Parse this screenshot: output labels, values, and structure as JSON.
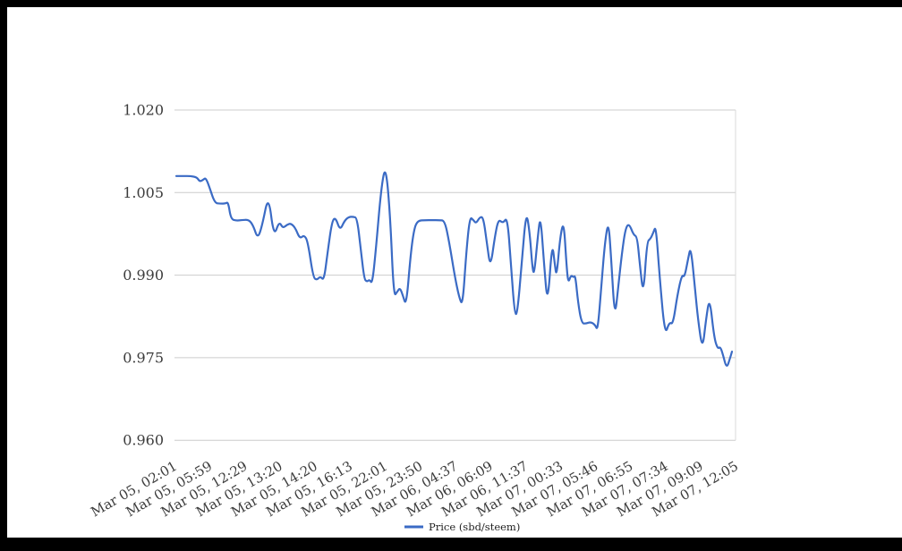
{
  "colors": {
    "frame": "#000000",
    "canvas": "#ffffff",
    "gridline": "#cccccc",
    "right_edge_line": "#d9d9d9",
    "axis_label_text": "#3c3c3c",
    "legend_text": "#1f1f1f",
    "series_line": "#3b6bc5"
  },
  "legend": {
    "label": "Price (sbd/steem)",
    "swatch": "line"
  },
  "chart_data": {
    "type": "line",
    "title": "",
    "xlabel": "",
    "ylabel": "",
    "ylim": [
      0.96,
      1.02
    ],
    "grid": "horizontal",
    "legend_position": "bottom-center",
    "y_ticks": [
      1.02,
      1.005,
      0.99,
      0.975,
      0.96
    ],
    "y_tick_labels": [
      "1.020",
      "1.005",
      "0.990",
      "0.975",
      "0.960"
    ],
    "x_tick_labels": [
      "Mar 05, 02:01",
      "Mar 05, 05:59",
      "Mar 05, 12:29",
      "Mar 05, 13:20",
      "Mar 05, 14:20",
      "Mar 05, 16:13",
      "Mar 05, 22:01",
      "Mar 05, 23:50",
      "Mar 06, 04:37",
      "Mar 06, 06:09",
      "Mar 06, 11:37",
      "Mar 07, 00:33",
      "Mar 07, 05:46",
      "Mar 07, 06:55",
      "Mar 07, 07:34",
      "Mar 07, 09:09",
      "Mar 07, 12:05"
    ],
    "series": [
      {
        "name": "Price (sbd/steem)",
        "color": "#3b6bc5",
        "points_format": "[x_position_px_on_screenshot, price_value]",
        "points": [
          [
            197,
            1.008
          ],
          [
            205,
            1.008
          ],
          [
            213,
            1.008
          ],
          [
            220,
            1.0078
          ],
          [
            223,
            1.007
          ],
          [
            227,
            1.0073
          ],
          [
            230,
            1.0077
          ],
          [
            234,
            1.006
          ],
          [
            240,
            1.0031
          ],
          [
            246,
            1.003
          ],
          [
            252,
            1.003
          ],
          [
            255,
            1.0033
          ],
          [
            258,
            1.0002
          ],
          [
            264,
            0.9999
          ],
          [
            270,
            1.0
          ],
          [
            278,
            1.0001
          ],
          [
            283,
            0.999
          ],
          [
            288,
            0.9966
          ],
          [
            293,
            0.999
          ],
          [
            300,
            1.0047
          ],
          [
            306,
            0.9969
          ],
          [
            312,
            0.9998
          ],
          [
            316,
            0.9985
          ],
          [
            321,
            0.9992
          ],
          [
            325,
            0.9994
          ],
          [
            330,
            0.9986
          ],
          [
            335,
            0.9966
          ],
          [
            340,
            0.9973
          ],
          [
            344,
            0.9961
          ],
          [
            350,
            0.9896
          ],
          [
            354,
            0.9891
          ],
          [
            358,
            0.9898
          ],
          [
            362,
            0.989
          ],
          [
            366,
            0.994
          ],
          [
            371,
            0.9998
          ],
          [
            375,
            1.0005
          ],
          [
            380,
            0.9981
          ],
          [
            385,
            0.9999
          ],
          [
            390,
            1.0006
          ],
          [
            395,
            1.0006
          ],
          [
            399,
            1.0004
          ],
          [
            403,
            0.995
          ],
          [
            407,
            0.9893
          ],
          [
            410,
            0.9888
          ],
          [
            413,
            0.9892
          ],
          [
            416,
            0.9884
          ],
          [
            420,
            0.9945
          ],
          [
            426,
            1.0059
          ],
          [
            431,
            1.0101
          ],
          [
            436,
            1.001
          ],
          [
            440,
            0.9861
          ],
          [
            444,
            0.987
          ],
          [
            447,
            0.9877
          ],
          [
            450,
            0.9864
          ],
          [
            454,
            0.9843
          ],
          [
            459,
            0.994
          ],
          [
            463,
            0.9986
          ],
          [
            467,
            0.9999
          ],
          [
            475,
            1.0
          ],
          [
            483,
            1.0
          ],
          [
            491,
            1.0
          ],
          [
            497,
            0.9999
          ],
          [
            502,
            0.996
          ],
          [
            508,
            0.99
          ],
          [
            513,
            0.986
          ],
          [
            517,
            0.9844
          ],
          [
            521,
            0.994
          ],
          [
            525,
            1.0006
          ],
          [
            529,
            1.0
          ],
          [
            532,
            0.9994
          ],
          [
            536,
            1.0005
          ],
          [
            540,
            1.0006
          ],
          [
            544,
            0.996
          ],
          [
            548,
            0.9912
          ],
          [
            553,
            0.997
          ],
          [
            557,
            1.0002
          ],
          [
            562,
            0.9994
          ],
          [
            567,
            1.0006
          ],
          [
            571,
            0.992
          ],
          [
            575,
            0.9831
          ],
          [
            578,
            0.9828
          ],
          [
            583,
            0.992
          ],
          [
            588,
            1.0018
          ],
          [
            592,
            0.9977
          ],
          [
            595,
            0.9912
          ],
          [
            597,
            0.9901
          ],
          [
            601,
            0.997
          ],
          [
            604,
            1.001
          ],
          [
            608,
            0.992
          ],
          [
            612,
            0.9843
          ],
          [
            617,
            0.9961
          ],
          [
            620,
            0.992
          ],
          [
            622,
            0.9896
          ],
          [
            626,
            0.997
          ],
          [
            630,
            0.9999
          ],
          [
            633,
            0.992
          ],
          [
            635,
            0.9885
          ],
          [
            638,
            0.99
          ],
          [
            641,
            0.9896
          ],
          [
            643,
            0.9899
          ],
          [
            646,
            0.985
          ],
          [
            650,
            0.9812
          ],
          [
            655,
            0.9812
          ],
          [
            660,
            0.9815
          ],
          [
            665,
            0.981
          ],
          [
            668,
            0.9799
          ],
          [
            672,
            0.988
          ],
          [
            676,
            0.996
          ],
          [
            680,
            0.9999
          ],
          [
            683,
            0.993
          ],
          [
            687,
            0.982
          ],
          [
            691,
            0.988
          ],
          [
            695,
            0.994
          ],
          [
            699,
            0.9985
          ],
          [
            703,
            0.9994
          ],
          [
            708,
            0.9973
          ],
          [
            712,
            0.997
          ],
          [
            715,
            0.992
          ],
          [
            719,
            0.9861
          ],
          [
            723,
            0.9961
          ],
          [
            727,
            0.9966
          ],
          [
            730,
            0.9977
          ],
          [
            733,
            0.999
          ],
          [
            737,
            0.99
          ],
          [
            743,
            0.979
          ],
          [
            748,
            0.9815
          ],
          [
            752,
            0.981
          ],
          [
            757,
            0.9864
          ],
          [
            762,
            0.9901
          ],
          [
            765,
            0.9896
          ],
          [
            769,
            0.993
          ],
          [
            772,
            0.9953
          ],
          [
            777,
            0.987
          ],
          [
            780,
            0.982
          ],
          [
            785,
            0.9763
          ],
          [
            789,
            0.982
          ],
          [
            793,
            0.9861
          ],
          [
            798,
            0.9787
          ],
          [
            802,
            0.9766
          ],
          [
            805,
            0.977
          ],
          [
            808,
            0.9755
          ],
          [
            812,
            0.973
          ],
          [
            816,
            0.975
          ],
          [
            818,
            0.9761
          ]
        ]
      }
    ]
  }
}
